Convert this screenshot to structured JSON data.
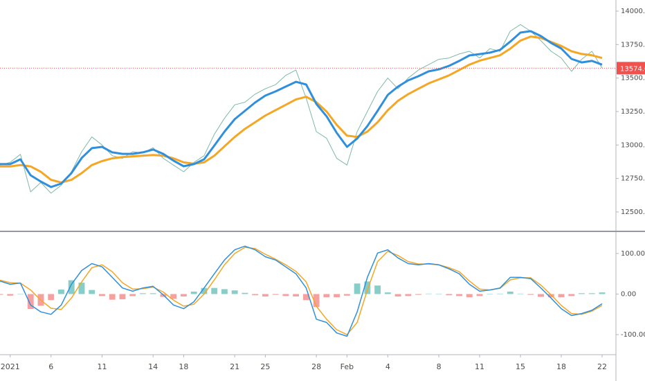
{
  "chart_data": [
    {
      "type": "line",
      "ylim": [
        12360,
        14083
      ],
      "yticks": [
        {
          "value": 12500,
          "label": "12500.00"
        },
        {
          "value": 12750,
          "label": "12750.00"
        },
        {
          "value": 13000,
          "label": "13000.00"
        },
        {
          "value": 13250,
          "label": "13250.00"
        },
        {
          "value": 13500,
          "label": "13500.00"
        },
        {
          "value": 13750,
          "label": "13750.00"
        },
        {
          "value": 14000,
          "label": "14000.00"
        }
      ],
      "last_price": {
        "value": 13574,
        "label": "13574.00",
        "color": "#ef5350"
      },
      "series": [
        {
          "color": "#7fb8a8",
          "values": [
            12850,
            12870,
            12930,
            12650,
            12720,
            12640,
            12700,
            12800,
            12950,
            13060,
            13000,
            12920,
            12900,
            12950,
            12940,
            12980,
            12900,
            12850,
            12800,
            12870,
            12920,
            13080,
            13200,
            13300,
            13320,
            13380,
            13420,
            13450,
            13520,
            13560,
            13350,
            13100,
            13050,
            12900,
            12850,
            13100,
            13250,
            13400,
            13500,
            13420,
            13500,
            13560,
            13600,
            13640,
            13650,
            13680,
            13700,
            13650,
            13720,
            13700,
            13850,
            13900,
            13850,
            13780,
            13700,
            13650,
            13550,
            13640,
            13700,
            13574
          ]
        },
        {
          "color": "#f5a623",
          "values": [
            12840,
            12840,
            12850,
            12840,
            12800,
            12740,
            12720,
            12740,
            12790,
            12850,
            12880,
            12900,
            12910,
            12915,
            12920,
            12925,
            12920,
            12900,
            12870,
            12860,
            12870,
            12920,
            12990,
            13060,
            13120,
            13170,
            13220,
            13260,
            13300,
            13340,
            13360,
            13320,
            13250,
            13150,
            13070,
            13060,
            13100,
            13170,
            13260,
            13330,
            13380,
            13420,
            13460,
            13490,
            13520,
            13560,
            13600,
            13630,
            13650,
            13670,
            13720,
            13780,
            13810,
            13800,
            13770,
            13740,
            13700,
            13680,
            13670,
            13650
          ]
        },
        {
          "color": "#2f8fdc",
          "values": [
            12857,
            12857,
            12893,
            12774,
            12727,
            12686,
            12712,
            12790,
            12903,
            12976,
            12986,
            12945,
            12934,
            12934,
            12945,
            12966,
            12934,
            12883,
            12841,
            12857,
            12893,
            12996,
            13100,
            13193,
            13255,
            13317,
            13369,
            13400,
            13436,
            13472,
            13452,
            13307,
            13214,
            13090,
            12986,
            13048,
            13141,
            13255,
            13374,
            13436,
            13483,
            13514,
            13550,
            13565,
            13591,
            13628,
            13669,
            13679,
            13690,
            13710,
            13772,
            13840,
            13850,
            13814,
            13762,
            13721,
            13643,
            13617,
            13628,
            13600
          ]
        }
      ]
    },
    {
      "type": "macd",
      "ylim": [
        -146,
        151
      ],
      "yticks": [
        {
          "value": 100,
          "label": "100.00"
        },
        {
          "value": 0,
          "label": "0.00"
        },
        {
          "value": -100,
          "label": "-100.00"
        }
      ],
      "categories": [
        null,
        "2021",
        null,
        null,
        null,
        "6",
        null,
        null,
        null,
        null,
        "11",
        null,
        null,
        null,
        null,
        "14",
        null,
        null,
        "18",
        null,
        null,
        null,
        null,
        "21",
        null,
        null,
        "25",
        null,
        null,
        null,
        null,
        "28",
        null,
        null,
        "Feb",
        null,
        null,
        null,
        "4",
        null,
        null,
        null,
        null,
        "8",
        null,
        null,
        null,
        "11",
        null,
        null,
        null,
        "15",
        null,
        null,
        null,
        "18",
        null,
        null,
        null,
        "22"
      ],
      "histogram": {
        "up_color": "#26a69a",
        "down_color": "#ef5350",
        "values": [
          -2,
          -4,
          0,
          -37,
          -29,
          -15,
          11,
          34,
          28,
          10,
          -5,
          -14,
          -13,
          -5,
          2,
          2,
          -7,
          -12,
          -6,
          6,
          15,
          15,
          12,
          9,
          3,
          -3,
          -6,
          -2,
          -5,
          -6,
          -15,
          -32,
          -8,
          -8,
          -4,
          26,
          31,
          21,
          4,
          -6,
          -5,
          -2,
          1,
          0,
          -3,
          -5,
          -8,
          -5,
          0,
          1,
          6,
          1,
          -2,
          -7,
          -8,
          -8,
          -5,
          2,
          2,
          4
        ]
      },
      "series": [
        {
          "color": "#f5a623",
          "values": [
            34,
            28,
            27,
            10,
            -15,
            -35,
            -38,
            -10,
            30,
            65,
            72,
            55,
            28,
            12,
            13,
            17,
            5,
            -15,
            -30,
            -25,
            0,
            35,
            72,
            100,
            115,
            112,
            98,
            86,
            72,
            56,
            30,
            -30,
            -62,
            -88,
            -100,
            -70,
            10,
            80,
            105,
            95,
            80,
            74,
            74,
            72,
            65,
            55,
            32,
            12,
            10,
            14,
            35,
            40,
            40,
            22,
            -2,
            -28,
            -48,
            -50,
            -42,
            -28
          ]
        },
        {
          "color": "#2f8fdc",
          "values": [
            32,
            24,
            27,
            -27,
            -44,
            -50,
            -27,
            24,
            58,
            75,
            67,
            41,
            15,
            7,
            15,
            19,
            -2,
            -27,
            -36,
            -19,
            15,
            50,
            84,
            109,
            118,
            109,
            92,
            84,
            67,
            50,
            15,
            -62,
            -70,
            -96,
            -104,
            -44,
            41,
            101,
            109,
            89,
            75,
            72,
            75,
            72,
            62,
            50,
            24,
            7,
            10,
            15,
            41,
            41,
            38,
            15,
            -10,
            -36,
            -53,
            -48,
            -40,
            -24
          ]
        }
      ]
    }
  ]
}
